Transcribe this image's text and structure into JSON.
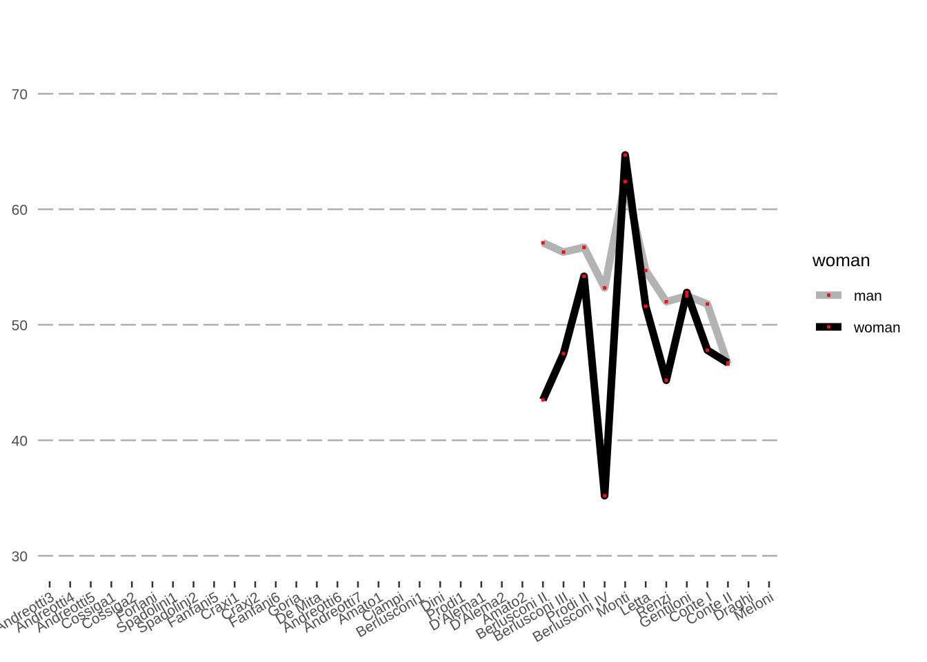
{
  "chart_data": {
    "type": "line",
    "title": "",
    "xlabel": "",
    "ylabel": "",
    "ylim": [
      28,
      76
    ],
    "yticks": [
      30,
      40,
      50,
      60,
      70
    ],
    "grid": true,
    "legend_position": "right",
    "legend_title": "woman",
    "categories": [
      "Andreotti3",
      "Andreotti4",
      "Andreotti5",
      "Cossiga1",
      "Cossiga2",
      "Forlani",
      "Spadolini1",
      "Spadolini2",
      "Fanfani5",
      "Craxi1",
      "Craxi2",
      "Fanfani6",
      "Goria",
      "De Mita",
      "Andreotti6",
      "Andreotti7",
      "Amato1",
      "Ciampi",
      "Berlusconi1",
      "Dini",
      "Prodi1",
      "D'Alema1",
      "D'Alema2",
      "Amato2",
      "Berlusconi II",
      "Berlusconi III",
      "Prodi II",
      "Berlusconi IV",
      "Monti",
      "Letta",
      "Renzi",
      "Gentiloni",
      "Conte I",
      "Conte II",
      "Draghi",
      "Meloni"
    ],
    "series": [
      {
        "name": "man",
        "color": "#b3b3b3",
        "values": [
          null,
          null,
          null,
          null,
          null,
          null,
          null,
          null,
          null,
          null,
          null,
          null,
          null,
          null,
          null,
          null,
          null,
          null,
          null,
          null,
          null,
          null,
          null,
          null,
          57.1,
          56.3,
          56.7,
          53.2,
          62.4,
          54.7,
          52.0,
          52.5,
          51.8,
          46.6,
          null,
          null
        ]
      },
      {
        "name": "woman",
        "color": "#000000",
        "values": [
          null,
          null,
          null,
          null,
          null,
          null,
          null,
          null,
          null,
          null,
          null,
          null,
          null,
          null,
          null,
          null,
          null,
          null,
          null,
          null,
          null,
          null,
          null,
          null,
          43.5,
          47.5,
          54.2,
          35.2,
          64.7,
          51.6,
          45.2,
          52.8,
          47.8,
          46.7,
          null,
          null
        ]
      }
    ],
    "point_color": "#e8141c"
  }
}
